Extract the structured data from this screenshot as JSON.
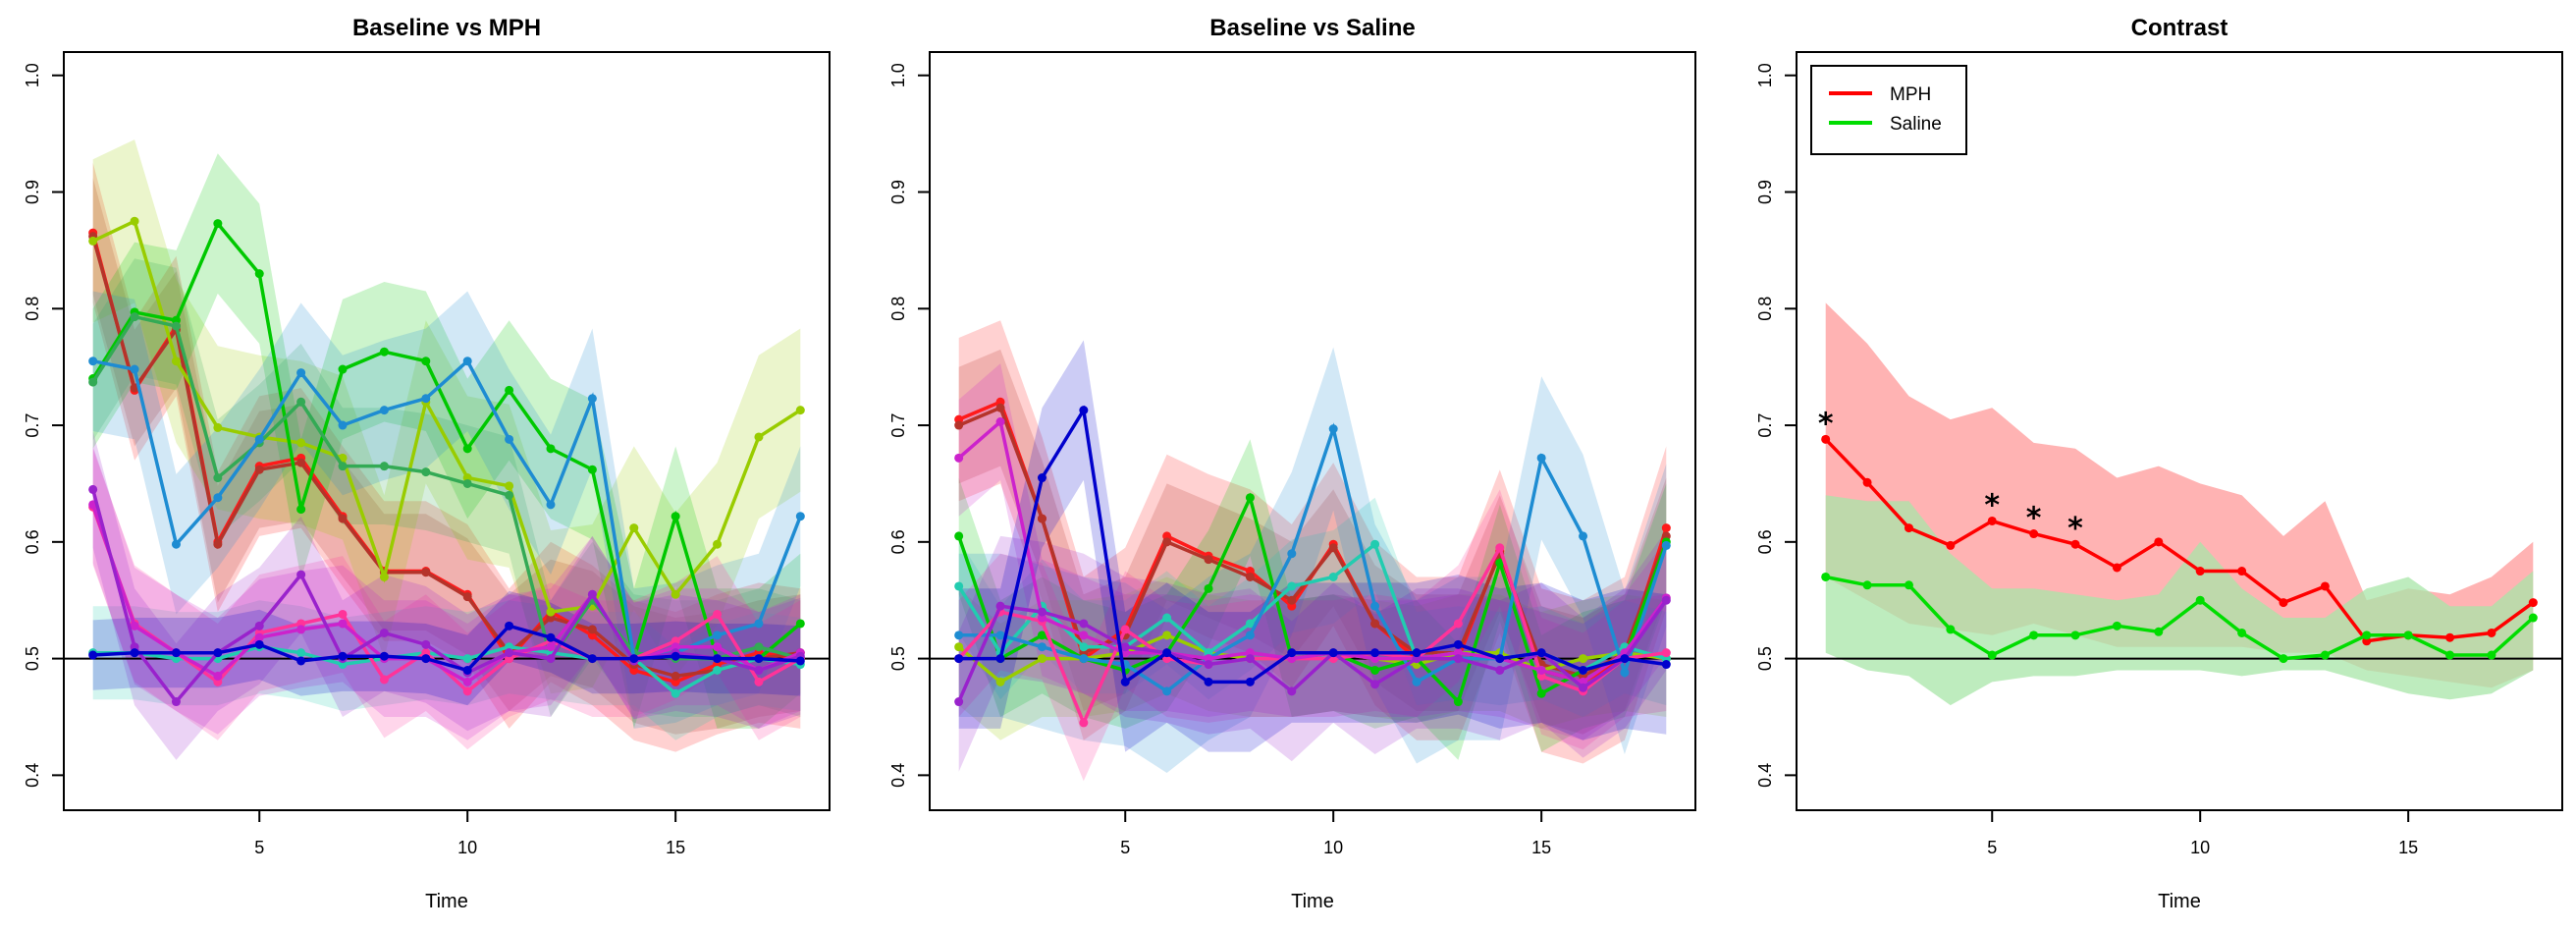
{
  "chart_data": [
    {
      "type": "line",
      "title": "Baseline vs MPH",
      "xlabel": "Time",
      "ylabel": "",
      "xlim": [
        0.3,
        18.7
      ],
      "ylim": [
        0.37,
        1.02
      ],
      "xticks": [
        5,
        10,
        15
      ],
      "yticks": [
        0.4,
        0.5,
        0.6,
        0.7,
        0.8,
        0.9,
        1.0
      ],
      "hline": 0.5,
      "x": [
        1,
        2,
        3,
        4,
        5,
        6,
        7,
        8,
        9,
        10,
        11,
        12,
        13,
        14,
        15,
        16,
        17,
        18
      ],
      "legend": null,
      "series": [
        {
          "color": "#ff1a1a",
          "band": 0.06,
          "values": [
            0.865,
            0.73,
            0.785,
            0.6,
            0.665,
            0.672,
            0.622,
            0.575,
            0.575,
            0.555,
            0.5,
            0.54,
            0.52,
            0.49,
            0.48,
            0.495,
            0.505,
            0.5
          ]
        },
        {
          "color": "#b5332a",
          "band": 0.05,
          "values": [
            0.862,
            0.732,
            0.782,
            0.598,
            0.662,
            0.668,
            0.62,
            0.574,
            0.574,
            0.553,
            0.505,
            0.535,
            0.525,
            0.495,
            0.485,
            0.49,
            0.5,
            0.505
          ]
        },
        {
          "color": "#99cc00",
          "band": 0.07,
          "values": [
            0.858,
            0.875,
            0.755,
            0.698,
            0.69,
            0.685,
            0.672,
            0.57,
            0.72,
            0.655,
            0.648,
            0.54,
            0.545,
            0.612,
            0.555,
            0.598,
            0.69,
            0.713
          ]
        },
        {
          "color": "#00c800",
          "band": 0.06,
          "values": [
            0.74,
            0.797,
            0.79,
            0.873,
            0.83,
            0.628,
            0.748,
            0.763,
            0.755,
            0.68,
            0.73,
            0.68,
            0.662,
            0.5,
            0.622,
            0.5,
            0.5,
            0.53
          ]
        },
        {
          "color": "#33aa55",
          "band": 0.05,
          "values": [
            0.737,
            0.793,
            0.785,
            0.655,
            0.685,
            0.72,
            0.665,
            0.665,
            0.66,
            0.65,
            0.64,
            0.5,
            0.55,
            0.505,
            0.5,
            0.5,
            0.51,
            0.5
          ]
        },
        {
          "color": "#1e8cd2",
          "band": 0.06,
          "values": [
            0.755,
            0.748,
            0.598,
            0.638,
            0.688,
            0.745,
            0.7,
            0.713,
            0.723,
            0.755,
            0.688,
            0.632,
            0.723,
            0.5,
            0.505,
            0.52,
            0.53,
            0.622
          ]
        },
        {
          "color": "#22ccb0",
          "band": 0.04,
          "values": [
            0.505,
            0.505,
            0.5,
            0.5,
            0.51,
            0.505,
            0.495,
            0.5,
            0.505,
            0.5,
            0.51,
            0.505,
            0.5,
            0.5,
            0.47,
            0.49,
            0.5,
            0.495
          ]
        },
        {
          "color": "#ff3399",
          "band": 0.05,
          "values": [
            0.63,
            0.53,
            0.505,
            0.48,
            0.522,
            0.53,
            0.538,
            0.482,
            0.505,
            0.472,
            0.5,
            0.515,
            0.5,
            0.5,
            0.515,
            0.538,
            0.48,
            0.5
          ]
        },
        {
          "color": "#cc22cc",
          "band": 0.05,
          "values": [
            0.632,
            0.528,
            0.505,
            0.485,
            0.518,
            0.525,
            0.53,
            0.5,
            0.5,
            0.48,
            0.505,
            0.51,
            0.555,
            0.498,
            0.51,
            0.51,
            0.49,
            0.505
          ]
        },
        {
          "color": "#9922cc",
          "band": 0.05,
          "values": [
            0.645,
            0.51,
            0.463,
            0.505,
            0.528,
            0.572,
            0.5,
            0.522,
            0.512,
            0.488,
            0.505,
            0.5,
            0.555,
            0.498,
            0.505,
            0.5,
            0.49,
            0.502
          ]
        },
        {
          "color": "#0000cc",
          "band": 0.03,
          "values": [
            0.503,
            0.505,
            0.505,
            0.505,
            0.512,
            0.498,
            0.502,
            0.502,
            0.5,
            0.49,
            0.528,
            0.518,
            0.5,
            0.5,
            0.502,
            0.5,
            0.5,
            0.498
          ]
        }
      ]
    },
    {
      "type": "line",
      "title": "Baseline vs Saline",
      "xlabel": "Time",
      "ylabel": "",
      "xlim": [
        0.3,
        18.7
      ],
      "ylim": [
        0.37,
        1.02
      ],
      "xticks": [
        5,
        10,
        15
      ],
      "yticks": [
        0.4,
        0.5,
        0.6,
        0.7,
        0.8,
        0.9,
        1.0
      ],
      "hline": 0.5,
      "x": [
        1,
        2,
        3,
        4,
        5,
        6,
        7,
        8,
        9,
        10,
        11,
        12,
        13,
        14,
        15,
        16,
        17,
        18
      ],
      "legend": null,
      "series": [
        {
          "color": "#ff1a1a",
          "band": 0.07,
          "values": [
            0.705,
            0.72,
            0.62,
            0.5,
            0.525,
            0.605,
            0.588,
            0.575,
            0.545,
            0.598,
            0.53,
            0.5,
            0.5,
            0.592,
            0.49,
            0.48,
            0.5,
            0.612
          ]
        },
        {
          "color": "#b5332a",
          "band": 0.05,
          "values": [
            0.7,
            0.715,
            0.62,
            0.505,
            0.52,
            0.6,
            0.585,
            0.57,
            0.55,
            0.595,
            0.53,
            0.505,
            0.505,
            0.59,
            0.495,
            0.485,
            0.505,
            0.605
          ]
        },
        {
          "color": "#99cc00",
          "band": 0.05,
          "values": [
            0.51,
            0.48,
            0.5,
            0.5,
            0.505,
            0.52,
            0.505,
            0.5,
            0.5,
            0.505,
            0.5,
            0.495,
            0.505,
            0.505,
            0.49,
            0.5,
            0.505,
            0.5
          ]
        },
        {
          "color": "#00c800",
          "band": 0.05,
          "values": [
            0.605,
            0.5,
            0.52,
            0.5,
            0.49,
            0.505,
            0.56,
            0.638,
            0.5,
            0.505,
            0.49,
            0.5,
            0.463,
            0.582,
            0.47,
            0.49,
            0.5,
            0.6
          ]
        },
        {
          "color": "#22ccb0",
          "band": 0.04,
          "values": [
            0.562,
            0.505,
            0.545,
            0.51,
            0.51,
            0.535,
            0.505,
            0.53,
            0.562,
            0.57,
            0.598,
            0.5,
            0.505,
            0.5,
            0.505,
            0.49,
            0.51,
            0.5
          ]
        },
        {
          "color": "#1e8cd2",
          "band": 0.07,
          "values": [
            0.52,
            0.52,
            0.51,
            0.5,
            0.495,
            0.472,
            0.5,
            0.52,
            0.59,
            0.697,
            0.545,
            0.48,
            0.5,
            0.5,
            0.672,
            0.605,
            0.488,
            0.597
          ]
        },
        {
          "color": "#ff3399",
          "band": 0.05,
          "values": [
            0.5,
            0.54,
            0.532,
            0.445,
            0.525,
            0.5,
            0.495,
            0.5,
            0.5,
            0.5,
            0.505,
            0.5,
            0.53,
            0.595,
            0.485,
            0.472,
            0.5,
            0.505
          ]
        },
        {
          "color": "#cc22cc",
          "band": 0.05,
          "values": [
            0.672,
            0.703,
            0.535,
            0.52,
            0.505,
            0.505,
            0.5,
            0.505,
            0.5,
            0.505,
            0.5,
            0.5,
            0.505,
            0.5,
            0.49,
            0.48,
            0.505,
            0.552
          ]
        },
        {
          "color": "#9922cc",
          "band": 0.06,
          "values": [
            0.463,
            0.545,
            0.54,
            0.53,
            0.51,
            0.505,
            0.495,
            0.5,
            0.472,
            0.505,
            0.478,
            0.5,
            0.5,
            0.49,
            0.505,
            0.475,
            0.5,
            0.55
          ]
        },
        {
          "color": "#0000cc",
          "band": 0.06,
          "values": [
            0.5,
            0.5,
            0.655,
            0.713,
            0.48,
            0.505,
            0.48,
            0.48,
            0.505,
            0.505,
            0.505,
            0.505,
            0.512,
            0.5,
            0.505,
            0.49,
            0.5,
            0.495
          ]
        }
      ]
    },
    {
      "type": "line",
      "title": "Contrast",
      "xlabel": "Time",
      "ylabel": "",
      "xlim": [
        0.3,
        18.7
      ],
      "ylim": [
        0.37,
        1.02
      ],
      "xticks": [
        5,
        10,
        15
      ],
      "yticks": [
        0.4,
        0.5,
        0.6,
        0.7,
        0.8,
        0.9,
        1.0
      ],
      "hline": 0.5,
      "x": [
        1,
        2,
        3,
        4,
        5,
        6,
        7,
        8,
        9,
        10,
        11,
        12,
        13,
        14,
        15,
        16,
        17,
        18
      ],
      "legend": "top-left",
      "annotations": [
        {
          "text": "*",
          "x": 1,
          "y": 0.688
        },
        {
          "text": "*",
          "x": 5,
          "y": 0.618
        },
        {
          "text": "*",
          "x": 6,
          "y": 0.607
        },
        {
          "text": "*",
          "x": 7,
          "y": 0.598
        }
      ],
      "series": [
        {
          "name": "MPH",
          "color": "#ff0000",
          "fill": "#ff9999",
          "values": [
            0.688,
            0.651,
            0.612,
            0.597,
            0.618,
            0.607,
            0.598,
            0.578,
            0.6,
            0.575,
            0.575,
            0.548,
            0.562,
            0.515,
            0.52,
            0.518,
            0.522,
            0.548
          ],
          "lower": [
            0.57,
            0.55,
            0.53,
            0.525,
            0.52,
            0.53,
            0.52,
            0.51,
            0.51,
            0.51,
            0.51,
            0.505,
            0.505,
            0.49,
            0.485,
            0.48,
            0.475,
            0.49
          ],
          "upper": [
            0.805,
            0.77,
            0.725,
            0.705,
            0.715,
            0.685,
            0.68,
            0.655,
            0.665,
            0.65,
            0.64,
            0.605,
            0.635,
            0.55,
            0.56,
            0.555,
            0.57,
            0.6
          ]
        },
        {
          "name": "Saline",
          "color": "#00dd00",
          "fill": "#a8e6a8",
          "values": [
            0.57,
            0.563,
            0.563,
            0.525,
            0.503,
            0.52,
            0.52,
            0.528,
            0.523,
            0.55,
            0.522,
            0.5,
            0.503,
            0.52,
            0.52,
            0.503,
            0.503,
            0.535
          ],
          "lower": [
            0.505,
            0.49,
            0.485,
            0.46,
            0.48,
            0.485,
            0.485,
            0.49,
            0.49,
            0.49,
            0.485,
            0.49,
            0.49,
            0.48,
            0.47,
            0.465,
            0.47,
            0.49
          ],
          "upper": [
            0.64,
            0.635,
            0.635,
            0.59,
            0.56,
            0.56,
            0.555,
            0.55,
            0.555,
            0.6,
            0.56,
            0.535,
            0.535,
            0.56,
            0.57,
            0.545,
            0.545,
            0.575
          ]
        }
      ]
    }
  ]
}
